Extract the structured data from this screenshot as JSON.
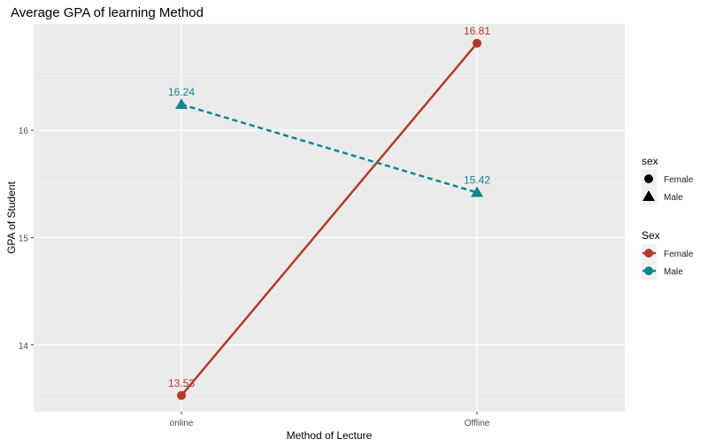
{
  "chart_data": {
    "type": "line",
    "title": "Average GPA of learning Method",
    "xlabel": "Method of Lecture",
    "ylabel": "GPA of Student",
    "categories": [
      "online",
      "Offline"
    ],
    "ylim": [
      13.38,
      16.99
    ],
    "yticks": [
      14,
      15,
      16
    ],
    "grid": true,
    "series": [
      {
        "name": "Female",
        "values": [
          13.53,
          16.81
        ],
        "labels": [
          "13.53",
          "16.81"
        ],
        "color": "#B33A2B",
        "linestyle": "solid",
        "marker": "circle"
      },
      {
        "name": "Male",
        "values": [
          16.24,
          15.42
        ],
        "labels": [
          "16.24",
          "15.42"
        ],
        "color": "#10868F",
        "linestyle": "dashed",
        "marker": "triangle"
      }
    ],
    "legends": [
      {
        "title": "sex",
        "entries": [
          "Female",
          "Male"
        ],
        "kind": "shape"
      },
      {
        "title": "Sex",
        "entries": [
          "Female",
          "Male"
        ],
        "kind": "color"
      }
    ],
    "legend_position": "right"
  }
}
